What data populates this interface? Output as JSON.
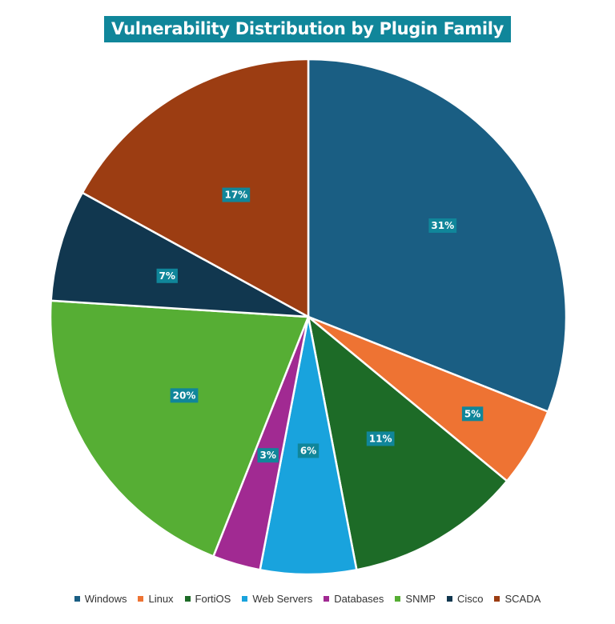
{
  "chart_data": {
    "type": "pie",
    "title": "Vulnerability Distribution by Plugin Family",
    "categories": [
      "Windows",
      "Linux",
      "FortiOS",
      "Web Servers",
      "Databases",
      "SNMP",
      "Cisco",
      "SCADA"
    ],
    "values": [
      31,
      5,
      11,
      6,
      3,
      20,
      7,
      17
    ],
    "labels": [
      "31%",
      "5%",
      "11%",
      "6%",
      "3%",
      "20%",
      "7%",
      "17%"
    ],
    "colors": [
      "#1a5e83",
      "#ee7333",
      "#1d6b27",
      "#19a3dd",
      "#a12a92",
      "#56ae34",
      "#11374f",
      "#9c3d12"
    ],
    "legend": "bottom"
  }
}
